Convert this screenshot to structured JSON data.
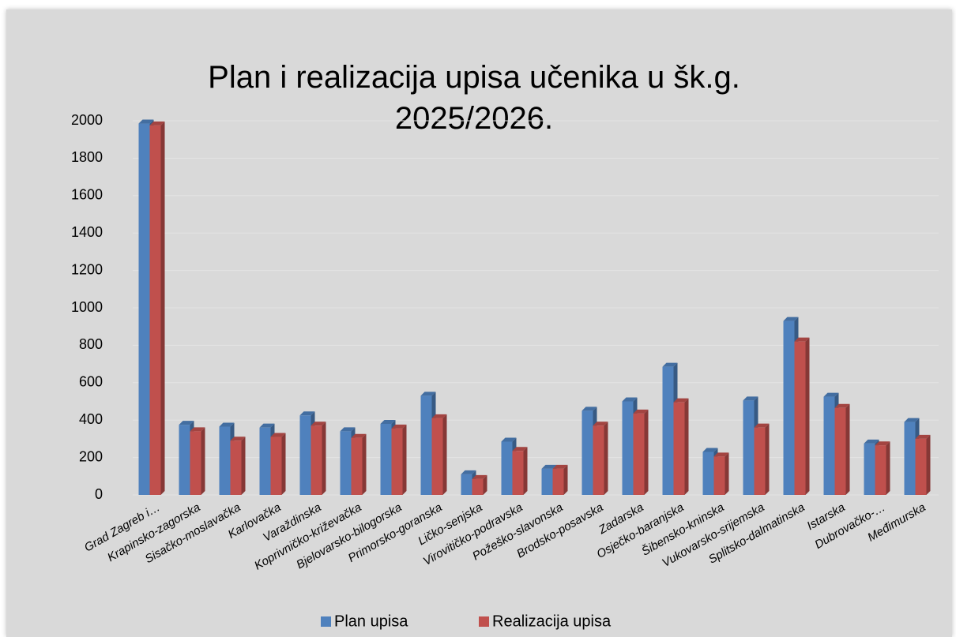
{
  "chart_data": {
    "type": "bar3d",
    "title": "Plan i realizacija upisa učenika u šk.g. 2025/2026.",
    "categories": [
      "Grad Zagreb i…",
      "Krapinsko-zagorska",
      "Sisačko-moslavačka",
      "Karlovačka",
      "Varaždinska",
      "Koprivničko-križevačka",
      "Bjelovarsko-bilogorska",
      "Primorsko-goranska",
      "Ličko-senjska",
      "Virovitičko-podravska",
      "Požeško-slavonska",
      "Brodsko-posavska",
      "Zadarska",
      "Osječko-baranjska",
      "Šibensko-kninska",
      "Vukovarsko-srijemska",
      "Splitsko-dalmatinska",
      "Istarska",
      "Dubrovačko-…",
      "Međimurska"
    ],
    "series": [
      {
        "name": "Plan upisa",
        "color": "#4f81bd",
        "values": [
          1985,
          375,
          365,
          360,
          425,
          340,
          380,
          530,
          110,
          285,
          140,
          450,
          500,
          685,
          230,
          505,
          930,
          525,
          275,
          390
        ]
      },
      {
        "name": "Realizacija upisa",
        "color": "#c0504d",
        "values": [
          1975,
          340,
          290,
          310,
          370,
          305,
          355,
          410,
          85,
          235,
          140,
          370,
          435,
          495,
          205,
          360,
          820,
          465,
          265,
          300
        ]
      }
    ],
    "ylim": [
      0,
      2000
    ],
    "yticks": [
      0,
      200,
      400,
      600,
      800,
      1000,
      1200,
      1400,
      1600,
      1800,
      2000
    ],
    "grid": true,
    "legend": "bottom"
  }
}
